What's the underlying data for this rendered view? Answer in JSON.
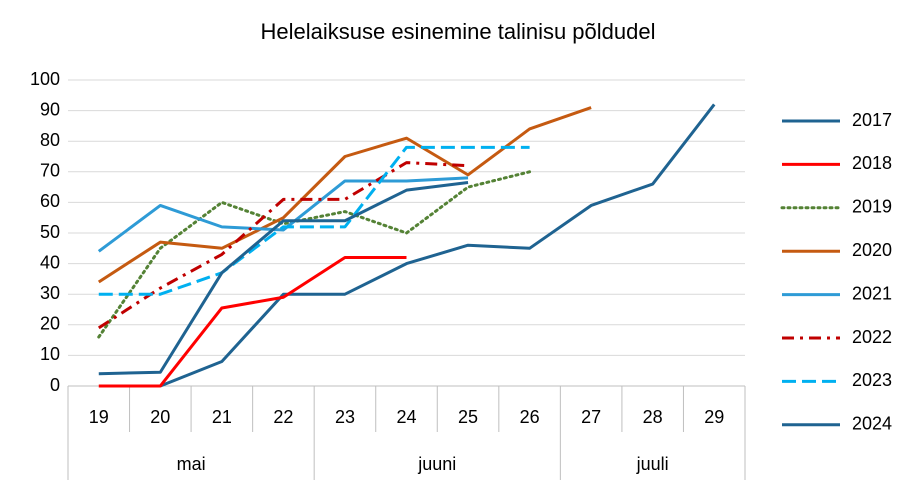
{
  "chart_data": {
    "type": "line",
    "title": "Helelaiksuse esinemine talinisu põldudel",
    "groups": [
      {
        "name": "mai",
        "categories": [
          "19",
          "20",
          "21",
          "22"
        ]
      },
      {
        "name": "juuni",
        "categories": [
          "23",
          "24",
          "25",
          "26"
        ]
      },
      {
        "name": "juuli",
        "categories": [
          "27",
          "28",
          "29"
        ]
      }
    ],
    "ylim": [
      0,
      100
    ],
    "yticks": [
      0,
      10,
      20,
      30,
      40,
      50,
      60,
      70,
      80,
      90,
      100
    ],
    "grid": true,
    "legend": "right",
    "series": [
      {
        "name": "2017",
        "color": "#1f6391",
        "style": "solid",
        "values": [
          null,
          0,
          8,
          30,
          30,
          40,
          46,
          45,
          59,
          66,
          92
        ]
      },
      {
        "name": "2018",
        "color": "#ff0000",
        "style": "solid",
        "values": [
          0,
          0,
          25.5,
          29,
          42,
          42,
          null,
          null,
          null,
          null,
          null
        ]
      },
      {
        "name": "2019",
        "color": "#548235",
        "style": "dotted",
        "values": [
          16,
          45,
          60,
          53,
          57,
          50,
          65,
          70,
          null,
          null,
          null
        ]
      },
      {
        "name": "2020",
        "color": "#c55a11",
        "style": "solid",
        "values": [
          34,
          47,
          45,
          55,
          75,
          81,
          69,
          84,
          91,
          null,
          null
        ]
      },
      {
        "name": "2021",
        "color": "#2e9bd6",
        "style": "solid",
        "values": [
          44,
          59,
          52,
          51,
          67,
          67,
          68,
          null,
          null,
          null,
          null
        ]
      },
      {
        "name": "2022",
        "color": "#c00000",
        "style": "dash-dot",
        "values": [
          19,
          32,
          43,
          61,
          61,
          73,
          72,
          null,
          null,
          null,
          null
        ]
      },
      {
        "name": "2023",
        "color": "#00b0f0",
        "style": "dashed",
        "values": [
          30,
          30,
          37,
          52,
          52,
          78,
          78,
          78,
          null,
          null,
          null
        ]
      },
      {
        "name": "2024",
        "color": "#1f6391",
        "style": "solid",
        "values": [
          4,
          4.5,
          37,
          54,
          54,
          64,
          66.5,
          null,
          null,
          null,
          null
        ]
      }
    ]
  }
}
